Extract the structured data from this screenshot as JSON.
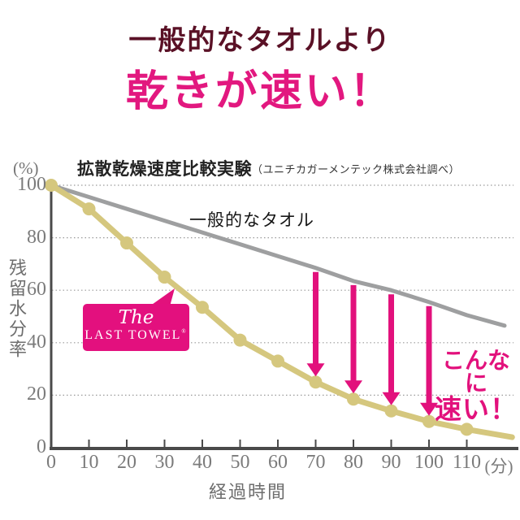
{
  "poster": {
    "title_line1": "一般的なタオルより",
    "title_line2": "乾きが速い！"
  },
  "chart_header": {
    "y_unit": "(%)",
    "title": "拡散乾燥速度比較実験",
    "source": "（ユニチカガーメンテック株式会社調べ）"
  },
  "logo": {
    "line1": "The",
    "line2": "LAST TOWEL",
    "reg": "®"
  },
  "colors": {
    "headline_dark": "#5a1126",
    "accent_pink": "#e2117c",
    "general_gray": "#9e9fa0",
    "last_towel_gold": "#d5c77e",
    "axis": "#4a4a4a",
    "tick_text": "#7b7b7b",
    "grid": "#9a9a9a"
  },
  "chart_data": {
    "type": "line",
    "title": "拡散乾燥速度比較実験",
    "subtitle": "（ユニチカガーメンテック株式会社調べ）",
    "xlabel": "経過時間",
    "ylabel": "残留水分率",
    "x_unit": "(分)",
    "y_unit": "(%)",
    "xlim": [
      0,
      123
    ],
    "ylim": [
      0,
      100
    ],
    "x_ticks": [
      0,
      10,
      20,
      30,
      40,
      50,
      60,
      70,
      80,
      90,
      100,
      110
    ],
    "y_ticks": [
      100,
      80,
      60,
      40,
      20,
      0
    ],
    "grid": "horizontal-dotted",
    "series": [
      {
        "name": "一般的なタオル",
        "color": "#9e9fa0",
        "width": 5,
        "markers": false,
        "x": [
          0,
          10,
          20,
          30,
          40,
          50,
          60,
          70,
          80,
          90,
          100,
          110,
          120
        ],
        "values": [
          100,
          95.5,
          91,
          86.5,
          82,
          77.5,
          73,
          68.5,
          63.5,
          60,
          55.5,
          50.5,
          46.5
        ]
      },
      {
        "name": "The LAST TOWEL",
        "color": "#d5c77e",
        "width": 7,
        "markers": true,
        "x": [
          0,
          10,
          20,
          30,
          40,
          50,
          60,
          70,
          80,
          90,
          100,
          110,
          122
        ],
        "values": [
          100,
          91,
          78,
          65,
          53.5,
          41,
          33,
          25,
          18.5,
          14,
          10,
          7,
          4
        ]
      }
    ],
    "arrows": {
      "color": "#e2117c",
      "x": [
        70,
        80,
        90,
        100
      ]
    },
    "annotation": {
      "line1": "こんなに",
      "line2": "速い！",
      "color": "#e2117c"
    }
  }
}
